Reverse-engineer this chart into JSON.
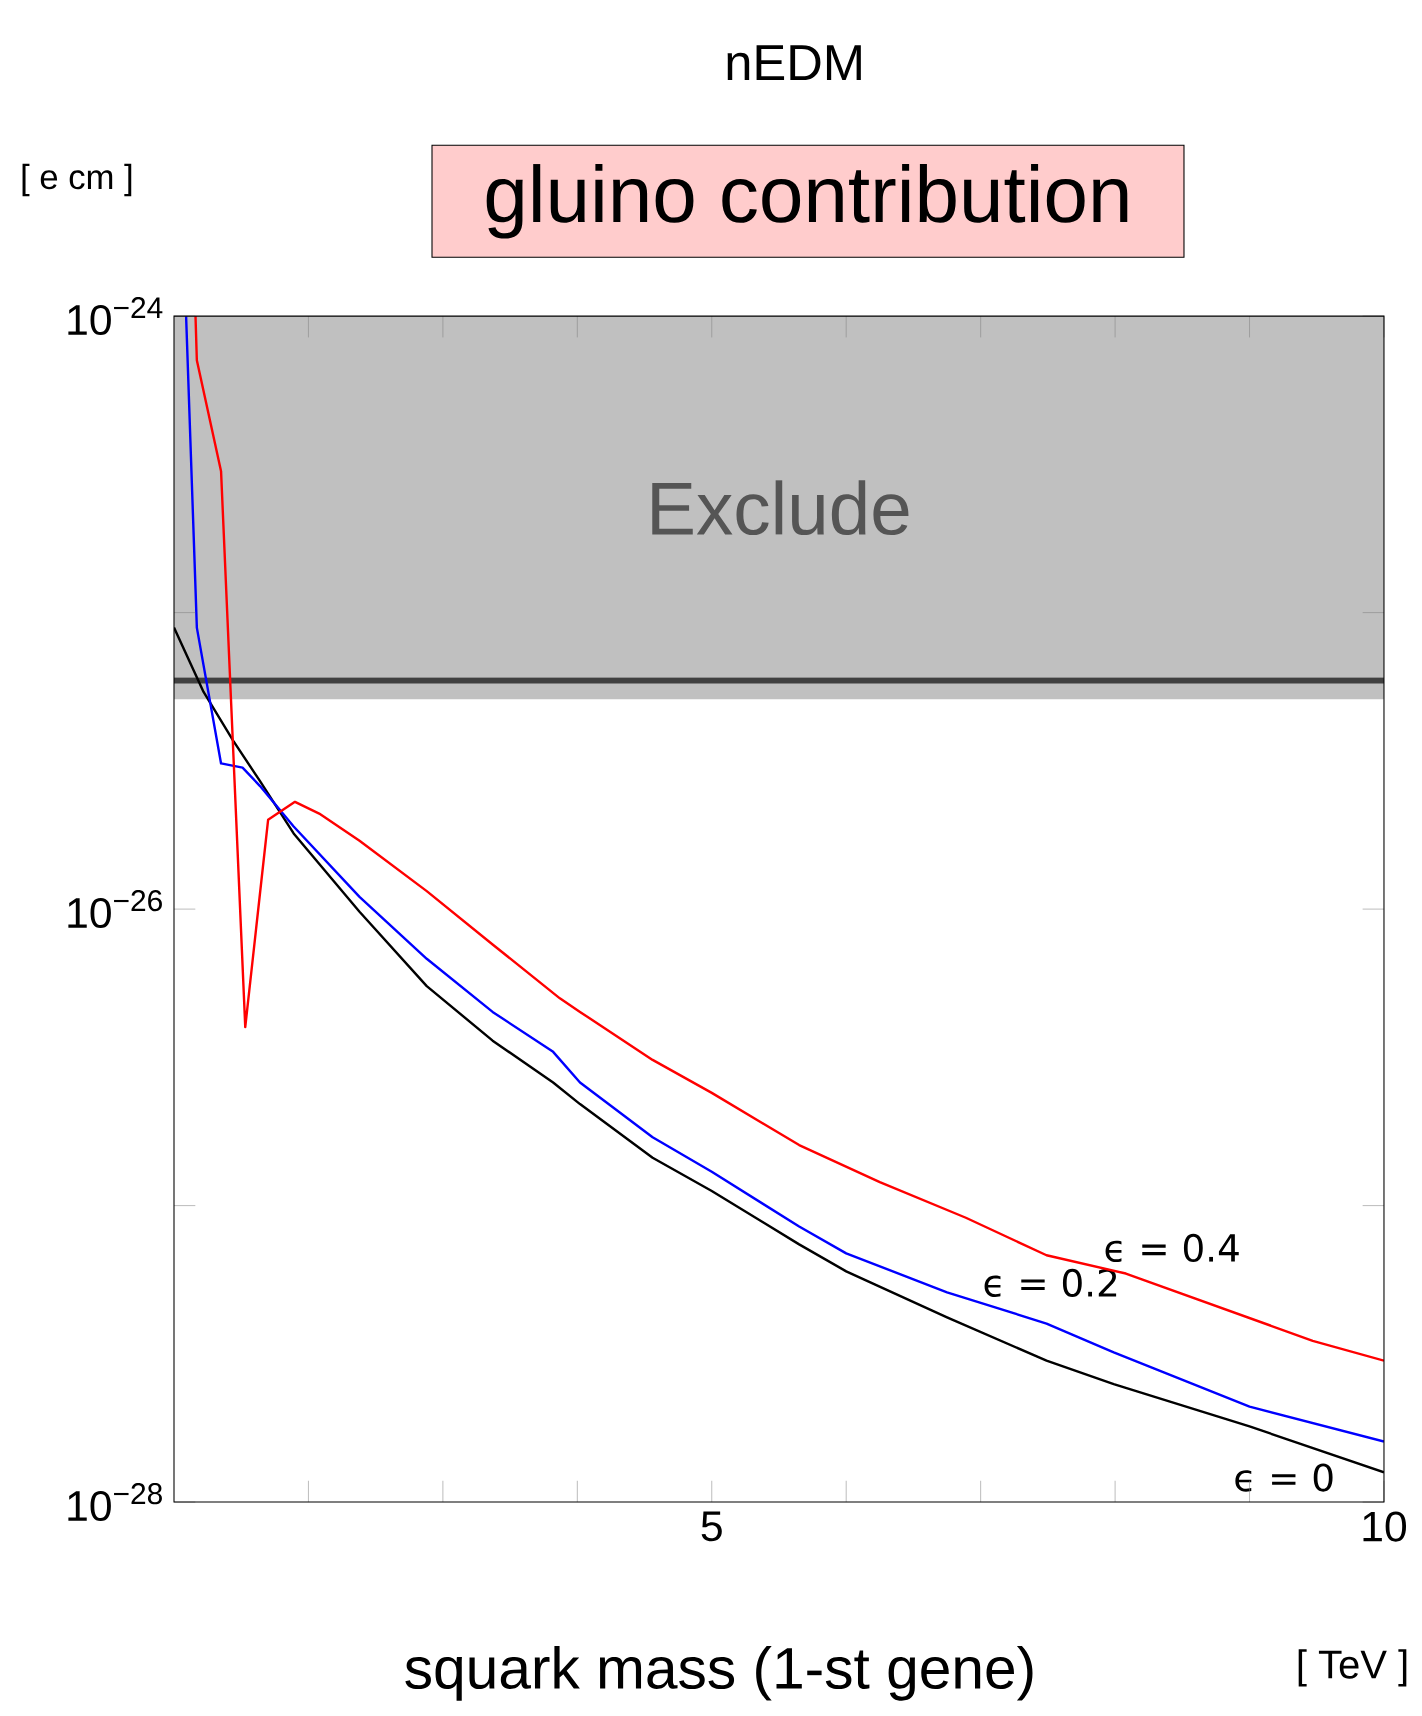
{
  "chart_data": {
    "type": "line",
    "title": "nEDM",
    "subtitle": "gluino contribution",
    "xlabel": "squark mass (1-st gene)",
    "ylabel": "[ e cm ]",
    "annotations": [
      "[ TeV ]"
    ],
    "log": "y",
    "xlim": [
      1,
      10
    ],
    "xticks": [
      {
        "value": 2,
        "label": null
      },
      {
        "value": 3,
        "label": null
      },
      {
        "value": 4,
        "label": null
      },
      5,
      {
        "value": 6,
        "label": null
      },
      {
        "value": 7,
        "label": null
      },
      {
        "value": 8,
        "label": null
      },
      {
        "value": 9,
        "label": null
      },
      10
    ],
    "ylim": [
      1e-28,
      1e-24
    ],
    "yticks": [
      {
        "value": 1e-28,
        "label": "10$^{−28}$"
      },
      {
        "value": 1e-27,
        "label": null
      },
      {
        "value": 1e-26,
        "label": "10$^{−26}$"
      },
      {
        "value": 1e-25,
        "label": null
      },
      {
        "value": 1e-24,
        "label": "10$^{−24}$"
      }
    ],
    "bands": [
      {
        "axis": "y",
        "from": 5.1e-26,
        "to": 1e-24,
        "label": "Exclude",
        "color": "#c0c0c0"
      }
    ],
    "ref_lines": [
      {
        "axis": "y",
        "value": 5.9e-26,
        "color": "#404040"
      }
    ],
    "series": [
      {
        "name": "ϵ = 0",
        "color": "#000000",
        "x": [
          1,
          1.22,
          1.44,
          1.64,
          1.89,
          2.38,
          2.88,
          3.37,
          3.82,
          4.02,
          4.56,
          5,
          5.65,
          6,
          6.75,
          7.49,
          7.99,
          9,
          10
        ],
        "values": [
          8.9e-26,
          5.4e-26,
          3.7e-26,
          2.7e-26,
          1.8e-26,
          9.8e-27,
          5.5e-27,
          3.6e-27,
          2.6e-27,
          2.2e-27,
          1.45e-27,
          1.12e-27,
          7.4e-28,
          6e-28,
          4.2e-28,
          3e-28,
          2.5e-28,
          1.8e-28,
          1.26e-28
        ]
      },
      {
        "name": "ϵ = 0.2",
        "color": "#0000ff",
        "x": [
          1.09,
          1.17,
          1.35,
          1.51,
          1.64,
          1.89,
          2.38,
          2.88,
          3.37,
          3.82,
          4.02,
          4.56,
          5,
          5.65,
          6,
          6.75,
          7.49,
          7.99,
          9,
          10
        ],
        "values": [
          1e-24,
          8.9e-26,
          3.1e-26,
          3e-26,
          2.6e-26,
          1.9e-26,
          1.1e-26,
          6.8e-27,
          4.5e-27,
          3.3e-27,
          2.6e-27,
          1.7e-27,
          1.3e-27,
          8.5e-28,
          6.9e-28,
          5.1e-28,
          4e-28,
          3.2e-28,
          2.1e-28,
          1.6e-28
        ]
      },
      {
        "name": "ϵ = 0.4",
        "color": "#ff0000",
        "x": [
          1.16,
          1.17,
          1.35,
          1.53,
          1.7,
          1.9,
          2.08,
          2.38,
          2.88,
          3.37,
          3.87,
          4.02,
          4.56,
          5,
          5.65,
          6.25,
          6.89,
          7.49,
          8.08,
          9.47,
          10
        ],
        "values": [
          1e-24,
          7.1e-25,
          3e-25,
          4e-27,
          2e-26,
          2.3e-26,
          2.1e-26,
          1.7e-26,
          1.15e-26,
          7.6e-27,
          5e-27,
          4.5e-27,
          3.1e-27,
          2.4e-27,
          1.6e-27,
          1.2e-27,
          9.1e-28,
          6.8e-28,
          5.9e-28,
          3.5e-28,
          3e-28
        ]
      }
    ]
  }
}
